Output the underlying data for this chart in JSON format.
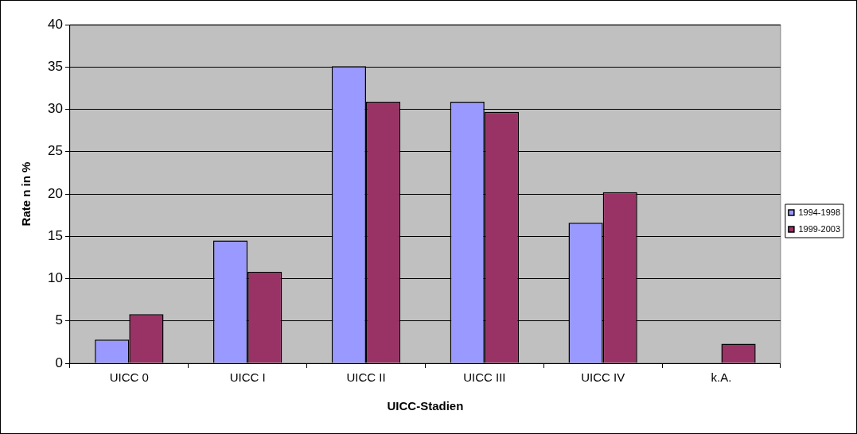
{
  "chart_data": {
    "type": "bar",
    "xlabel": "UICC-Stadien",
    "ylabel": "Rate n in %",
    "categories": [
      "UICC 0",
      "UICC I",
      "UICC II",
      "UICC III",
      "UICC IV",
      "k.A."
    ],
    "series": [
      {
        "name": "1994-1998",
        "color": "#9999ff",
        "values": [
          2.8,
          14.5,
          35.1,
          30.9,
          16.6,
          null
        ]
      },
      {
        "name": "1999-2003",
        "color": "#993366",
        "values": [
          5.8,
          10.8,
          30.9,
          29.7,
          20.2,
          2.3
        ]
      }
    ],
    "ylim": [
      0,
      40
    ],
    "yticks": [
      0,
      5,
      10,
      15,
      20,
      25,
      30,
      35,
      40
    ],
    "grid": "y",
    "legend": "right"
  }
}
